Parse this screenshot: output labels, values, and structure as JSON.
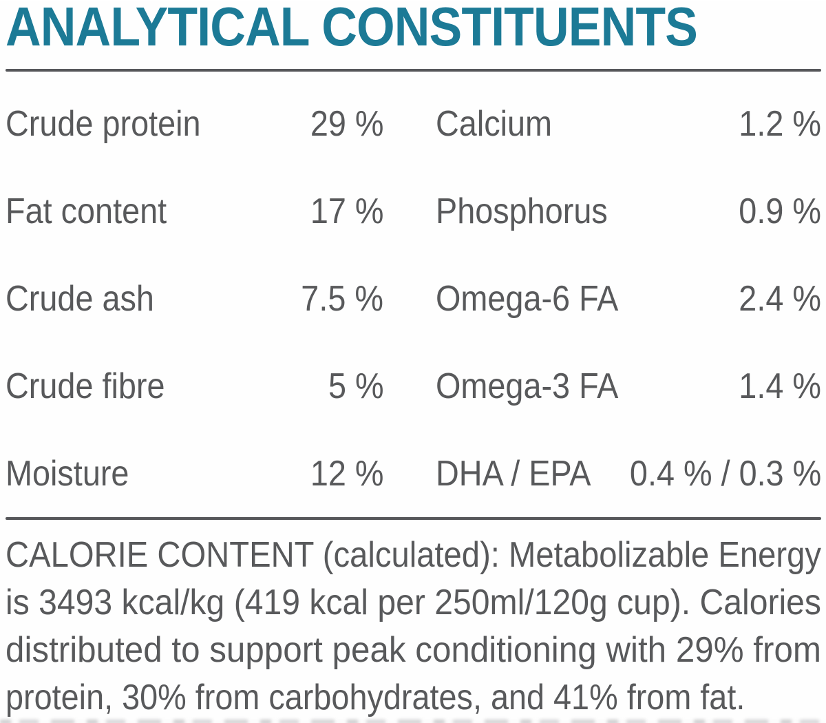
{
  "title": "ANALYTICAL CONSTITUENTS",
  "colors": {
    "accent_teal": "#1C7A96",
    "body_text_gray": "#58595B",
    "rule_gray": "#56575A",
    "background": "#FFFFFF"
  },
  "constituents": {
    "left_column": [
      {
        "label": "Crude protein",
        "value": "29 %"
      },
      {
        "label": "Fat content",
        "value": "17 %"
      },
      {
        "label": "Crude ash",
        "value": "7.5 %"
      },
      {
        "label": "Crude fibre",
        "value": "5 %"
      },
      {
        "label": "Moisture",
        "value": "12 %"
      }
    ],
    "right_column": [
      {
        "label": "Calcium",
        "value": "1.2 %"
      },
      {
        "label": "Phosphorus",
        "value": "0.9 %"
      },
      {
        "label": "Omega-6 FA",
        "value": "2.4 %"
      },
      {
        "label": "Omega-3 FA",
        "value": "1.4 %"
      },
      {
        "label": "DHA / EPA",
        "value": "0.4 % / 0.3 %"
      }
    ]
  },
  "calorie_content": {
    "full_text": "CALORIE CONTENT (calculated): Metabolizable Energy is 3493 kcal/kg (419 kcal per 250ml/120g cup). Calories distributed to support peak conditioning with 29% from protein, 30% from carbohydrates, and 41% from fat.",
    "lines": [
      "CALORIE CONTENT (calculated): Metabolizable Energy",
      "is 3493 kcal/kg (419 kcal per 250ml/120g cup). Calories",
      "distributed to support peak conditioning with 29% from",
      "protein, 30% from carbohydrates, and 41% from fat."
    ],
    "metabolizable_energy_kcal_per_kg": "3493",
    "kcal_per_cup": "419",
    "cup_size": "250ml/120g",
    "calories_from_protein_pct": "29%",
    "calories_from_carbohydrates_pct": "30%",
    "calories_from_fat_pct": "41%"
  }
}
